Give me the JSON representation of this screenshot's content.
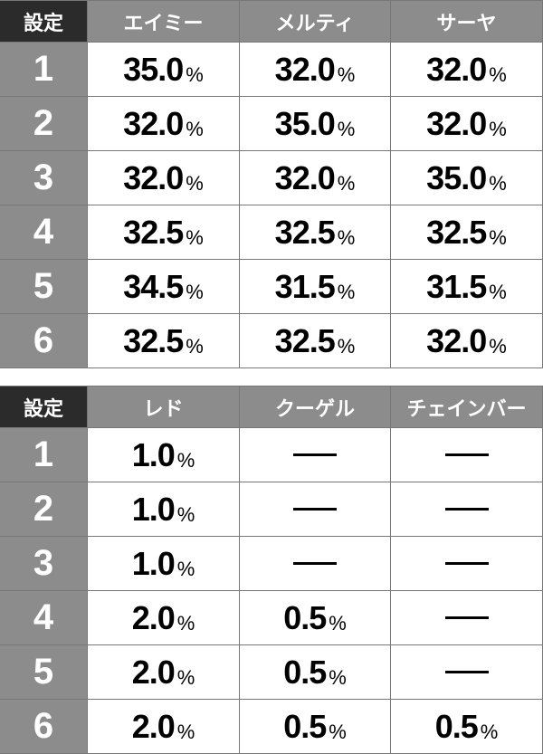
{
  "table1": {
    "header": [
      "設定",
      "エイミー",
      "メルティ",
      "サーヤ"
    ],
    "rows": [
      {
        "setting": "1",
        "values": [
          "35.0",
          "32.0",
          "32.0"
        ]
      },
      {
        "setting": "2",
        "values": [
          "32.0",
          "35.0",
          "32.0"
        ]
      },
      {
        "setting": "3",
        "values": [
          "32.0",
          "32.0",
          "35.0"
        ]
      },
      {
        "setting": "4",
        "values": [
          "32.5",
          "32.5",
          "32.5"
        ]
      },
      {
        "setting": "5",
        "values": [
          "34.5",
          "31.5",
          "31.5"
        ]
      },
      {
        "setting": "6",
        "values": [
          "32.5",
          "32.5",
          "32.0"
        ]
      }
    ]
  },
  "table2": {
    "header": [
      "設定",
      "レド",
      "クーゲル",
      "チェインバー"
    ],
    "rows": [
      {
        "setting": "1",
        "values": [
          "1.0",
          null,
          null
        ]
      },
      {
        "setting": "2",
        "values": [
          "1.0",
          null,
          null
        ]
      },
      {
        "setting": "3",
        "values": [
          "1.0",
          null,
          null
        ]
      },
      {
        "setting": "4",
        "values": [
          "2.0",
          "0.5",
          null
        ]
      },
      {
        "setting": "5",
        "values": [
          "2.0",
          "0.5",
          null
        ]
      },
      {
        "setting": "6",
        "values": [
          "2.0",
          "0.5",
          "0.5"
        ]
      }
    ]
  },
  "unit": "%",
  "empty_mark": "—",
  "colors": {
    "header_dark": "#2b2b2b",
    "header_gray": "#8c8c8c",
    "border": "#777777"
  }
}
